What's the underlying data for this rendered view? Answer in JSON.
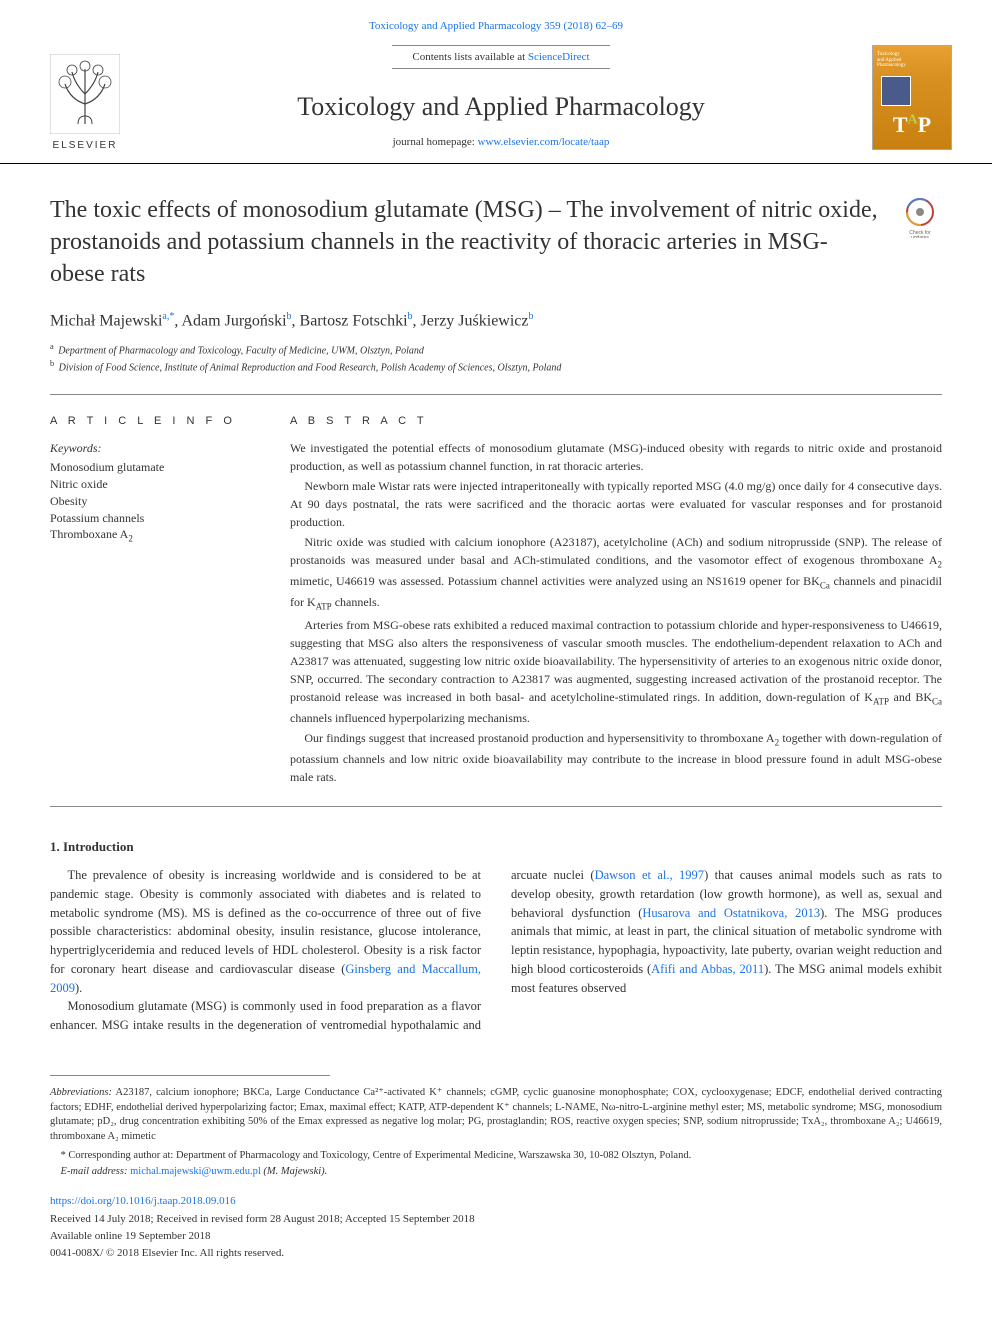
{
  "header": {
    "volume_line": "Toxicology and Applied Pharmacology 359 (2018) 62–69",
    "contents_prefix": "Contents lists available at ",
    "contents_link": "ScienceDirect",
    "journal_title": "Toxicology and Applied Pharmacology",
    "homepage_prefix": "journal homepage: ",
    "homepage_url": "www.elsevier.com/locate/taap",
    "elsevier_word": "ELSEVIER",
    "cover_label": "Toxicology\nand Applied\nPharmacology",
    "cover_letters_t": "T",
    "cover_letters_a": "A",
    "cover_letters_p": "P"
  },
  "article": {
    "title": "The toxic effects of monosodium glutamate (MSG) – The involvement of nitric oxide, prostanoids and potassium channels in the reactivity of thoracic arteries in MSG-obese rats",
    "check_updates_label": "Check for updates",
    "authors_html": "Michał Majewski<sup>a,*</sup>, Adam Jurgoński<sup>b</sup>, Bartosz Fotschki<sup>b</sup>, Jerzy Juśkiewicz<sup>b</sup>",
    "affiliations": [
      {
        "sup": "a",
        "text": "Department of Pharmacology and Toxicology, Faculty of Medicine, UWM, Olsztyn, Poland"
      },
      {
        "sup": "b",
        "text": "Division of Food Science, Institute of Animal Reproduction and Food Research, Polish Academy of Sciences, Olsztyn, Poland"
      }
    ]
  },
  "info": {
    "section_label": "A R T I C L E   I N F O",
    "keywords_label": "Keywords:",
    "keywords": [
      "Monosodium glutamate",
      "Nitric oxide",
      "Obesity",
      "Potassium channels",
      "Thromboxane A₂"
    ]
  },
  "abstract": {
    "section_label": "A B S T R A C T",
    "paragraphs": [
      "We investigated the potential effects of monosodium glutamate (MSG)-induced obesity with regards to nitric oxide and prostanoid production, as well as potassium channel function, in rat thoracic arteries.",
      "Newborn male Wistar rats were injected intraperitoneally with typically reported MSG (4.0 mg/g) once daily for 4 consecutive days. At 90 days postnatal, the rats were sacrificed and the thoracic aortas were evaluated for vascular responses and for prostanoid production.",
      "Nitric oxide was studied with calcium ionophore (A23187), acetylcholine (ACh) and sodium nitroprusside (SNP). The release of prostanoids was measured under basal and ACh-stimulated conditions, and the vasomotor effect of exogenous thromboxane A₂ mimetic, U46619 was assessed. Potassium channel activities were analyzed using an NS1619 opener for BKCa channels and pinacidil for KATP channels.",
      "Arteries from MSG-obese rats exhibited a reduced maximal contraction to potassium chloride and hyper-responsiveness to U46619, suggesting that MSG also alters the responsiveness of vascular smooth muscles. The endothelium-dependent relaxation to ACh and A23817 was attenuated, suggesting low nitric oxide bioavailability. The hypersensitivity of arteries to an exogenous nitric oxide donor, SNP, occurred. The secondary contraction to A23817 was augmented, suggesting increased activation of the prostanoid receptor. The prostanoid release was increased in both basal- and acetylcholine-stimulated rings. In addition, down-regulation of KATP and BKCa channels influenced hyperpolarizing mechanisms.",
      "Our findings suggest that increased prostanoid production and hypersensitivity to thromboxane A₂ together with down-regulation of potassium channels and low nitric oxide bioavailability may contribute to the increase in blood pressure found in adult MSG-obese male rats."
    ]
  },
  "body": {
    "intro_heading": "1. Introduction",
    "intro_col1_p1": "The prevalence of obesity is increasing worldwide and is considered to be at pandemic stage. Obesity is commonly associated with diabetes and is related to metabolic syndrome (MS). MS is defined as the co-occurrence of three out of five possible characteristics: abdominal obesity, insulin resistance, glucose intolerance, hypertriglyceridemia and reduced levels of HDL cholesterol. Obesity is a risk factor for coronary heart disease and cardiovascular disease (",
    "intro_col1_link1": "Ginsberg and Maccallum, 2009",
    "intro_col1_p1_end": ").",
    "intro_col2_p1_a": "Monosodium glutamate (MSG) is commonly used in food preparation as a flavor enhancer. MSG intake results in the degeneration of ventromedial hypothalamic and arcuate nuclei (",
    "intro_col2_link1": "Dawson et al., 1997",
    "intro_col2_p1_b": ") that causes animal models such as rats to develop obesity, growth retardation (low growth hormone), as well as, sexual and behavioral dysfunction (",
    "intro_col2_link2": "Husarova and Ostatnikova, 2013",
    "intro_col2_p1_c": "). The MSG produces animals that mimic, at least in part, the clinical situation of metabolic syndrome with leptin resistance, hypophagia, hypoactivity, late puberty, ovarian weight reduction and high blood corticosteroids (",
    "intro_col2_link3": "Afifi and Abbas, 2011",
    "intro_col2_p1_d": "). The MSG animal models exhibit most features observed"
  },
  "footer": {
    "abbrev_label": "Abbreviations:",
    "abbrev_text": " A23187, calcium ionophore; BKCa, Large Conductance Ca²⁺-activated K⁺ channels; cGMP, cyclic guanosine monophosphate; COX, cyclooxygenase; EDCF, endothelial derived contracting factors; EDHF, endothelial derived hyperpolarizing factor; Emax, maximal effect; KATP, ATP-dependent K⁺ channels; L-NAME, Nω-nitro-L-arginine methyl ester; MS, metabolic syndrome; MSG, monosodium glutamate; pD₂, drug concentration exhibiting 50% of the Emax expressed as negative log molar; PG, prostaglandin; ROS, reactive oxygen species; SNP, sodium nitroprusside; TxA₂, thromboxane A₂; U46619, thromboxane A₂ mimetic",
    "corresponding": "* Corresponding author at: Department of Pharmacology and Toxicology, Centre of Experimental Medicine, Warszawska 30, 10-082 Olsztyn, Poland.",
    "email_label": "E-mail address: ",
    "email": "michal.majewski@uwm.edu.pl",
    "email_suffix": " (M. Majewski).",
    "doi": "https://doi.org/10.1016/j.taap.2018.09.016",
    "dates": "Received 14 July 2018; Received in revised form 28 August 2018; Accepted 15 September 2018",
    "available": "Available online 19 September 2018",
    "copyright": "0041-008X/ © 2018 Elsevier Inc. All rights reserved."
  },
  "colors": {
    "link": "#1a73e8",
    "rule": "#888888",
    "cover_grad_top": "#e8a030",
    "cover_grad_bottom": "#c88010"
  }
}
